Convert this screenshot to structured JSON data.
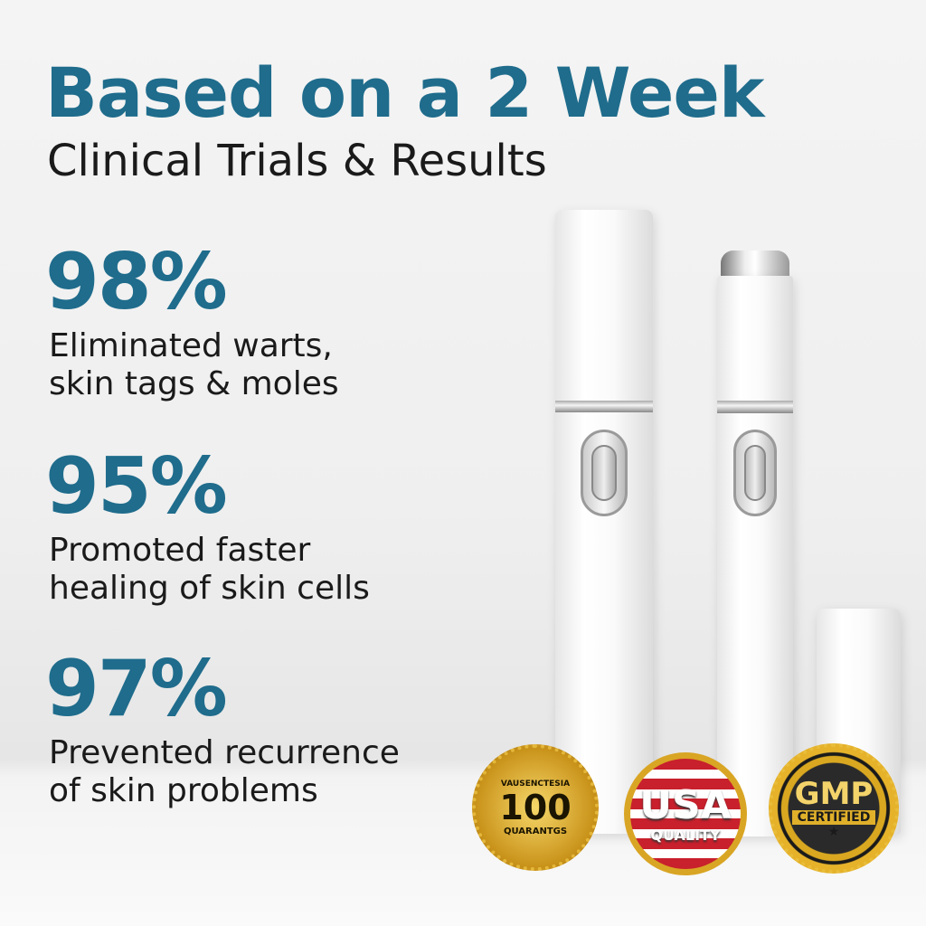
{
  "headline": {
    "title": "Based on a 2 Week",
    "subtitle": "Clinical Trials & Results"
  },
  "stats": [
    {
      "value": "98%",
      "line1": "Eliminated warts,",
      "line2": "skin tags & moles"
    },
    {
      "value": "95%",
      "line1": "Promoted faster",
      "line2": "healing of skin cells"
    },
    {
      "value": "97%",
      "line1": "Prevented recurrence",
      "line2": "of skin problems"
    }
  ],
  "badges": [
    {
      "icon": "gold-guarantee-seal",
      "top": "VAUSENCTESIA",
      "number": "100",
      "bottom": "QUARANTGS"
    },
    {
      "icon": "usa-flag-seal",
      "main": "USA",
      "sub": "QUALITY"
    },
    {
      "icon": "gmp-seal",
      "main": "GMP",
      "sub": "CERTIFIED",
      "star": "★"
    }
  ],
  "colors": {
    "accent": "#1f6c8c",
    "gold": "#d4a017"
  }
}
